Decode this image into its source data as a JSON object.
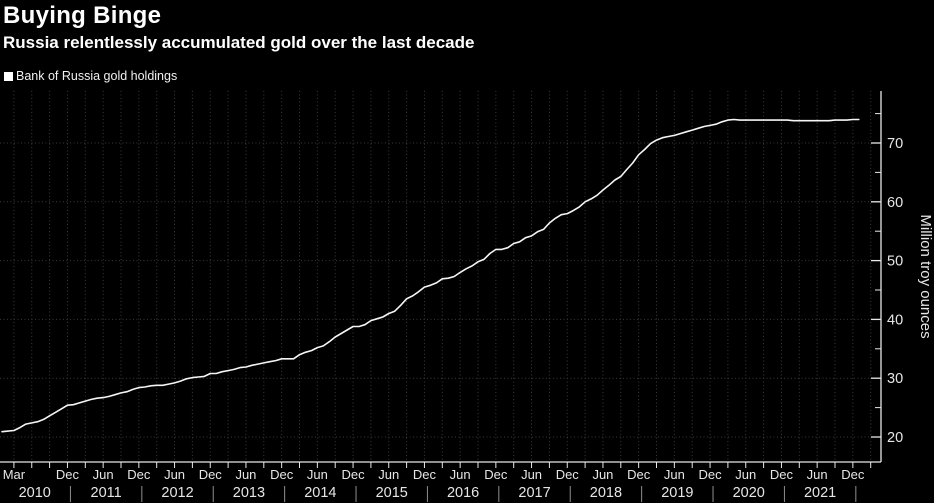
{
  "header": {
    "title": "Buying Binge",
    "subtitle": "Russia relentlessly accumulated gold over the last decade"
  },
  "legend": {
    "marker_color": "#ffffff",
    "label": "Bank of Russia gold holdings"
  },
  "chart_data": {
    "type": "line",
    "title": "Buying Binge",
    "subtitle": "Russia relentlessly accumulated gold over the last decade",
    "series_name": "Bank of Russia gold holdings",
    "ylabel": "Million troy ounces",
    "x_frequency": "monthly",
    "x_start": "2010-01",
    "x_end": "2022-01",
    "ylim": [
      15.5,
      79
    ],
    "y_major_ticks": [
      20,
      30,
      40,
      50,
      60,
      70
    ],
    "y_minor_ticks": [
      25,
      35,
      45,
      55,
      65,
      75
    ],
    "grid": "dotted; vertical quarterly, horizontal at major ticks",
    "legend_position": "top-left",
    "values": [
      20.9,
      21.0,
      21.1,
      21.6,
      22.2,
      22.4,
      22.6,
      23.0,
      23.6,
      24.2,
      24.8,
      25.4,
      25.5,
      25.8,
      26.1,
      26.4,
      26.6,
      26.7,
      26.9,
      27.2,
      27.5,
      27.7,
      28.1,
      28.4,
      28.5,
      28.7,
      28.8,
      28.8,
      29.0,
      29.2,
      29.5,
      29.9,
      30.1,
      30.2,
      30.3,
      30.8,
      30.8,
      31.1,
      31.3,
      31.5,
      31.8,
      31.9,
      32.2,
      32.4,
      32.6,
      32.8,
      33.0,
      33.3,
      33.3,
      33.3,
      34.0,
      34.4,
      34.7,
      35.2,
      35.5,
      36.2,
      37.0,
      37.6,
      38.2,
      38.8,
      38.8,
      39.1,
      39.8,
      40.1,
      40.4,
      41.0,
      41.4,
      42.4,
      43.5,
      44.0,
      44.7,
      45.5,
      45.8,
      46.2,
      46.9,
      47.0,
      47.3,
      48.0,
      48.6,
      49.1,
      49.8,
      50.2,
      51.2,
      51.9,
      51.9,
      52.2,
      52.9,
      53.2,
      53.9,
      54.2,
      54.9,
      55.3,
      56.4,
      57.2,
      57.8,
      58.0,
      58.5,
      59.1,
      60.0,
      60.5,
      61.1,
      62.0,
      62.8,
      63.7,
      64.3,
      65.5,
      66.6,
      68.0,
      68.9,
      69.9,
      70.5,
      70.9,
      71.1,
      71.3,
      71.6,
      71.9,
      72.2,
      72.5,
      72.8,
      73.0,
      73.2,
      73.6,
      73.9,
      74.0,
      73.9,
      73.9,
      73.9,
      73.9,
      73.9,
      73.9,
      73.9,
      73.9,
      73.9,
      73.8,
      73.8,
      73.8,
      73.8,
      73.8,
      73.8,
      73.8,
      73.9,
      73.9,
      73.9,
      74.0,
      74.0
    ],
    "x_tick_labels": [
      {
        "m": 2,
        "label": "Mar"
      },
      {
        "m": 11,
        "label": "Dec"
      },
      {
        "m": 17,
        "label": "Jun"
      },
      {
        "m": 23,
        "label": "Dec"
      },
      {
        "m": 29,
        "label": "Jun"
      },
      {
        "m": 35,
        "label": "Dec"
      },
      {
        "m": 41,
        "label": "Jun"
      },
      {
        "m": 47,
        "label": "Dec"
      },
      {
        "m": 53,
        "label": "Jun"
      },
      {
        "m": 59,
        "label": "Dec"
      },
      {
        "m": 65,
        "label": "Jun"
      },
      {
        "m": 71,
        "label": "Dec"
      },
      {
        "m": 77,
        "label": "Jun"
      },
      {
        "m": 83,
        "label": "Dec"
      },
      {
        "m": 89,
        "label": "Jun"
      },
      {
        "m": 95,
        "label": "Dec"
      },
      {
        "m": 101,
        "label": "Jun"
      },
      {
        "m": 107,
        "label": "Dec"
      },
      {
        "m": 113,
        "label": "Jun"
      },
      {
        "m": 119,
        "label": "Dec"
      },
      {
        "m": 125,
        "label": "Jun"
      },
      {
        "m": 131,
        "label": "Dec"
      },
      {
        "m": 137,
        "label": "Jun"
      },
      {
        "m": 143,
        "label": "Dec"
      }
    ],
    "year_labels": [
      "2010",
      "2011",
      "2012",
      "2013",
      "2014",
      "2015",
      "2016",
      "2017",
      "2018",
      "2019",
      "2020",
      "2021"
    ],
    "colors": {
      "background": "#000000",
      "line": "#f5f5f5",
      "grid": "#3a3a3a",
      "axis": "#e8e8e8",
      "tick_label": "#e6e6e6",
      "title": "#ffffff",
      "year_separator": "#8f8f8f"
    }
  }
}
